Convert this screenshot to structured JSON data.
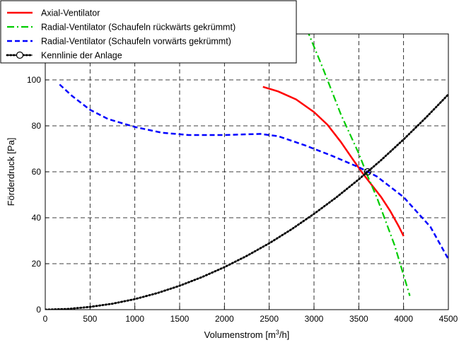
{
  "chart_data": {
    "type": "line",
    "xlabel_main": "Volumenstrom [m",
    "xlabel_sup": "3",
    "xlabel_tail": "/h]",
    "ylabel": "Förderdruck [Pa]",
    "xlim": [
      0,
      4500
    ],
    "ylim": [
      0,
      120
    ],
    "x_ticks": [
      "0",
      "500",
      "1000",
      "1500",
      "2000",
      "2500",
      "3000",
      "3500",
      "4000",
      "4500"
    ],
    "y_ticks": [
      "0",
      "20",
      "40",
      "60",
      "80",
      "100"
    ],
    "grid": true,
    "grid_style": "dashed",
    "legend_position": "top-left",
    "series": [
      {
        "name": "Axial-Ventilator",
        "color": "#ff0000",
        "style": "solid",
        "x": [
          2430,
          2600,
          2800,
          3000,
          3150,
          3300,
          3450,
          3550,
          3650,
          3750,
          3850,
          3950,
          4000
        ],
        "y": [
          97,
          95,
          91.5,
          86,
          80.5,
          73,
          64.5,
          59,
          54,
          49,
          43,
          36,
          32
        ]
      },
      {
        "name": "Radial-Ventilator (Schaufeln rückwärts gekrümmt)",
        "color": "#00cc00",
        "style": "dashdot",
        "x": [
          2920,
          3100,
          3300,
          3500,
          3600,
          3700,
          3900,
          4070
        ],
        "y": [
          122,
          105,
          85,
          68,
          58,
          49,
          28,
          6
        ]
      },
      {
        "name": "Radial-Ventilator (Schaufeln vorwärts gekrümmt)",
        "color": "#0000ff",
        "style": "dashed",
        "x": [
          160,
          300,
          500,
          700,
          1000,
          1300,
          1600,
          2000,
          2400,
          2600,
          2900,
          3200,
          3500,
          3700,
          4000,
          4300,
          4500
        ],
        "y": [
          98,
          93,
          87,
          83,
          79.5,
          77,
          76,
          76,
          76.5,
          75.5,
          71.5,
          67,
          62,
          58,
          49,
          36,
          22
        ]
      },
      {
        "name": "Kennlinie der Anlage",
        "color": "#000000",
        "style": "dotted",
        "x": [
          0,
          250,
          500,
          750,
          1000,
          1250,
          1500,
          1750,
          2000,
          2250,
          2500,
          2750,
          3000,
          3250,
          3500,
          3750,
          4000,
          4250,
          4500
        ],
        "y": [
          0,
          0.3,
          1.2,
          2.6,
          4.6,
          7.2,
          10.4,
          14.2,
          18.5,
          23.4,
          28.9,
          35,
          41.7,
          48.9,
          56.7,
          65.1,
          74.1,
          83.6,
          93.7
        ]
      }
    ],
    "operating_point": {
      "x": 3600,
      "y": 60
    }
  }
}
